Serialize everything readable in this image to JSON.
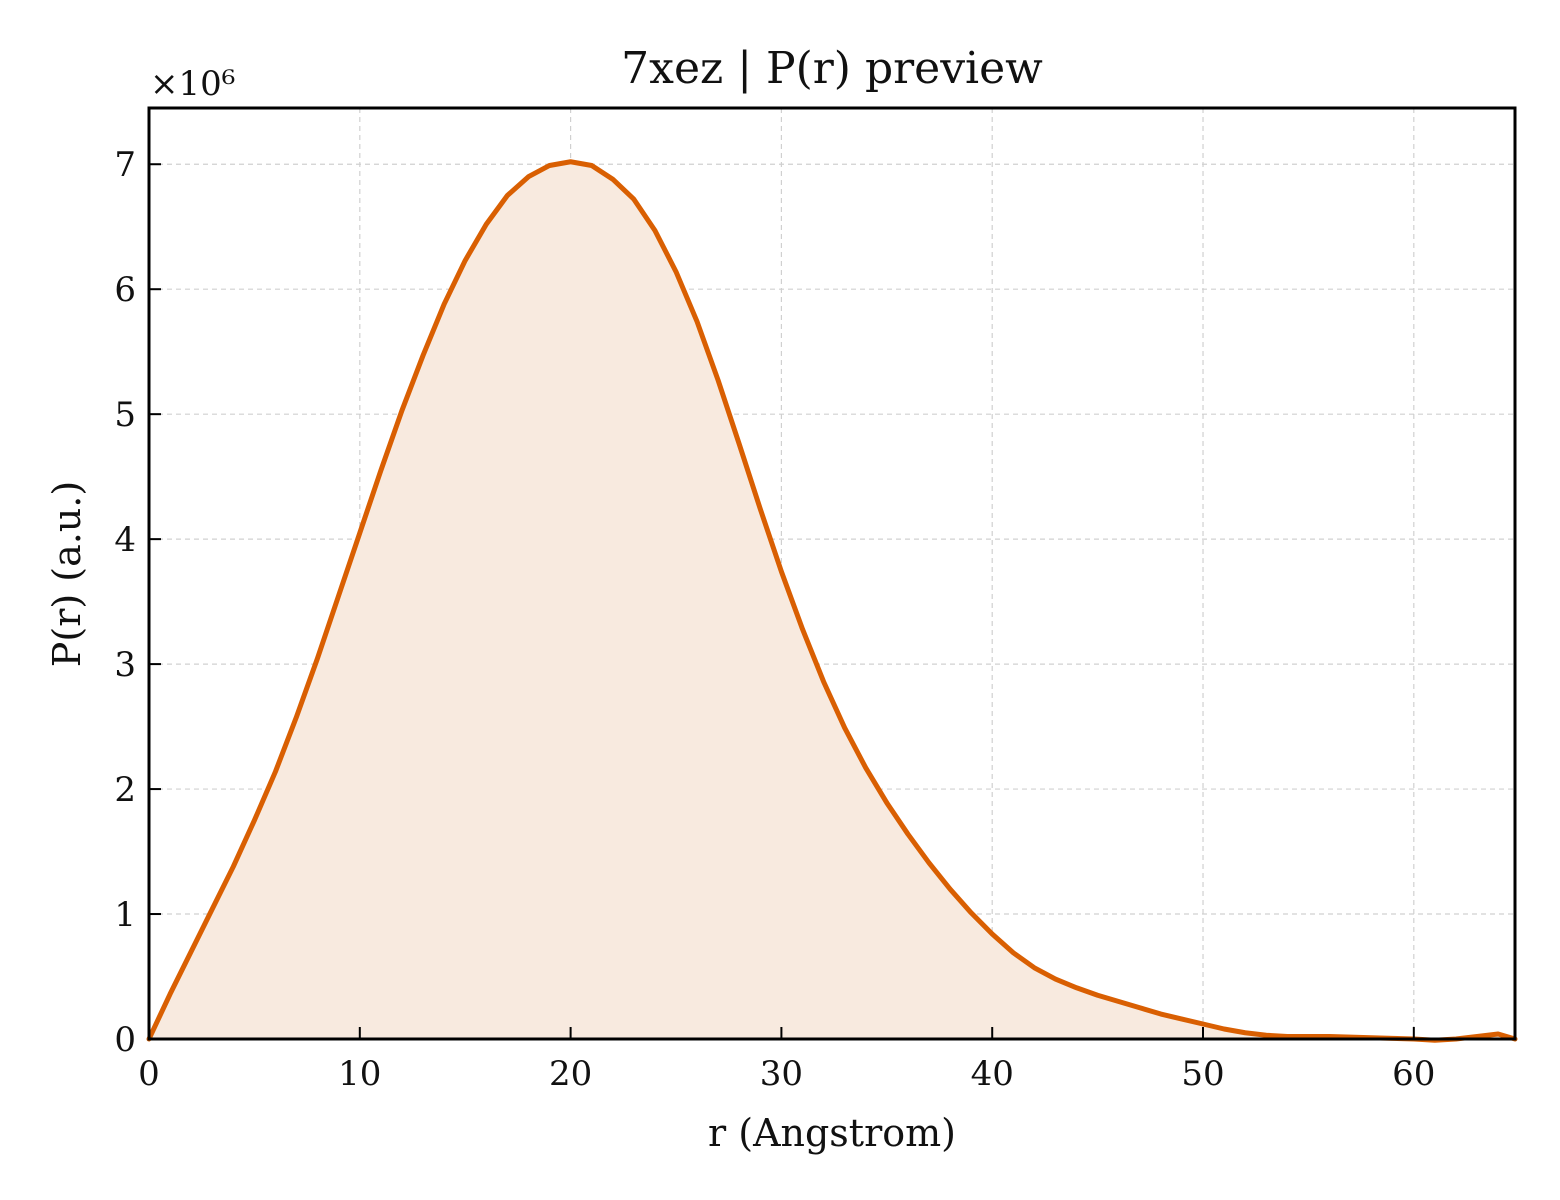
{
  "chart_data": {
    "type": "area",
    "title": "7xez | P(r) preview",
    "xlabel": "r (Angstrom)",
    "ylabel": "P(r) (a.u.)",
    "y_multiplier_label": "×10⁶",
    "xlim": [
      0,
      64.8
    ],
    "ylim": [
      0,
      7.45
    ],
    "x_ticks": [
      0,
      10,
      20,
      30,
      40,
      50,
      60
    ],
    "y_ticks": [
      0,
      1,
      2,
      3,
      4,
      5,
      6,
      7
    ],
    "grid": true,
    "line_color": "#d95f02",
    "fill_color": "#f8eadf",
    "series": [
      {
        "x": [
          0,
          1,
          2,
          3,
          4,
          5,
          6,
          7,
          8,
          9,
          10,
          11,
          12,
          13,
          14,
          15,
          16,
          17,
          18,
          19,
          20,
          21,
          22,
          23,
          24,
          25,
          26,
          27,
          28,
          29,
          30,
          31,
          32,
          33,
          34,
          35,
          36,
          37,
          38,
          39,
          40,
          41,
          42,
          43,
          44,
          45,
          46,
          47,
          48,
          49,
          50,
          51,
          52,
          53,
          54,
          55,
          56,
          57,
          58,
          59,
          60,
          61,
          62,
          63,
          64,
          64.8
        ],
        "y": [
          0,
          0.36,
          0.7,
          1.04,
          1.38,
          1.75,
          2.14,
          2.58,
          3.05,
          3.55,
          4.05,
          4.55,
          5.03,
          5.47,
          5.88,
          6.23,
          6.52,
          6.75,
          6.9,
          6.99,
          7.02,
          6.99,
          6.88,
          6.72,
          6.47,
          6.14,
          5.74,
          5.27,
          4.76,
          4.24,
          3.74,
          3.28,
          2.86,
          2.49,
          2.17,
          1.89,
          1.64,
          1.41,
          1.2,
          1.01,
          0.84,
          0.69,
          0.57,
          0.48,
          0.41,
          0.35,
          0.3,
          0.25,
          0.2,
          0.16,
          0.12,
          0.08,
          0.05,
          0.03,
          0.02,
          0.02,
          0.02,
          0.015,
          0.01,
          0.005,
          0,
          -0.01,
          0,
          0.02,
          0.04,
          0.0
        ]
      }
    ]
  }
}
